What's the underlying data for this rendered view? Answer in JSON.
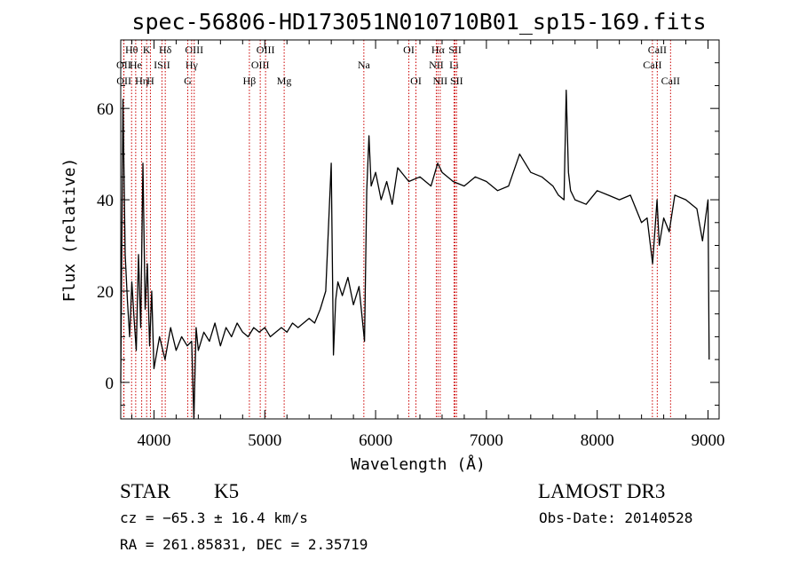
{
  "title": "spec-56806-HD173051N010710B01_sp15-169.fits",
  "chart_data": {
    "type": "line",
    "xlabel": "Wavelength (Å)",
    "ylabel": "Flux (relative)",
    "xlim": [
      3700,
      9100
    ],
    "ylim": [
      -8,
      75
    ],
    "xticks": [
      4000,
      5000,
      6000,
      7000,
      8000,
      9000
    ],
    "yticks": [
      0,
      20,
      40,
      60
    ],
    "series": [
      {
        "x": [
          3700,
          3720,
          3740,
          3760,
          3780,
          3800,
          3820,
          3840,
          3860,
          3880,
          3900,
          3920,
          3940,
          3960,
          3980,
          4000,
          4050,
          4100,
          4150,
          4200,
          4250,
          4300,
          4340,
          4360,
          4380,
          4400,
          4450,
          4500,
          4550,
          4600,
          4650,
          4700,
          4750,
          4800,
          4850,
          4900,
          4950,
          5000,
          5050,
          5100,
          5150,
          5200,
          5250,
          5300,
          5350,
          5400,
          5450,
          5500,
          5550,
          5600,
          5620,
          5640,
          5660,
          5700,
          5750,
          5800,
          5850,
          5900,
          5920,
          5940,
          5960,
          6000,
          6050,
          6100,
          6150,
          6200,
          6300,
          6400,
          6500,
          6560,
          6600,
          6700,
          6800,
          6900,
          7000,
          7100,
          7200,
          7300,
          7400,
          7500,
          7600,
          7650,
          7700,
          7720,
          7740,
          7760,
          7800,
          7900,
          8000,
          8100,
          8200,
          8300,
          8400,
          8450,
          8500,
          8540,
          8560,
          8600,
          8650,
          8700,
          8800,
          8900,
          8950,
          9000,
          9010
        ],
        "y": [
          0,
          62,
          28,
          18,
          10,
          22,
          14,
          7,
          28,
          12,
          48,
          16,
          26,
          8,
          20,
          3,
          10,
          5,
          12,
          7,
          10,
          8,
          9,
          -8,
          12,
          7,
          11,
          9,
          13,
          8,
          12,
          10,
          13,
          11,
          10,
          12,
          11,
          12,
          10,
          11,
          12,
          11,
          13,
          12,
          13,
          14,
          13,
          16,
          20,
          48,
          6,
          18,
          22,
          19,
          23,
          17,
          21,
          9,
          42,
          54,
          43,
          46,
          40,
          44,
          39,
          47,
          44,
          45,
          43,
          48,
          46,
          44,
          43,
          45,
          44,
          42,
          43,
          50,
          46,
          45,
          43,
          41,
          40,
          64,
          46,
          42,
          40,
          39,
          42,
          41,
          40,
          41,
          35,
          36,
          26,
          40,
          30,
          36,
          33,
          41,
          40,
          38,
          31,
          40,
          5
        ]
      }
    ],
    "line_markers": [
      {
        "label": "OII",
        "x": 3727,
        "row": 1,
        "color": "#cc0000"
      },
      {
        "label": "OII",
        "x": 3729,
        "row": 2,
        "color": "#cc0000"
      },
      {
        "label": "Hθ",
        "x": 3798,
        "row": 0,
        "color": "#cc0000"
      },
      {
        "label": "He",
        "x": 3835,
        "row": 1,
        "color": "#cc0000"
      },
      {
        "label": "Hη",
        "x": 3889,
        "row": 2,
        "color": "#cc0000"
      },
      {
        "label": "K",
        "x": 3934,
        "row": 0,
        "color": "#cc0000"
      },
      {
        "label": "H",
        "x": 3968,
        "row": 2,
        "color": "#cc0000"
      },
      {
        "label": "ISII",
        "x": 4072,
        "row": 1,
        "color": "#cc0000"
      },
      {
        "label": "Hδ",
        "x": 4102,
        "row": 0,
        "color": "#cc0000"
      },
      {
        "label": "OIII",
        "x": 4363,
        "row": 0,
        "color": "#cc0000"
      },
      {
        "label": "Hγ",
        "x": 4340,
        "row": 1,
        "color": "#cc0000"
      },
      {
        "label": "G",
        "x": 4305,
        "row": 2,
        "color": "#cc0000"
      },
      {
        "label": "Hβ",
        "x": 4861,
        "row": 2,
        "color": "#cc0000"
      },
      {
        "label": "OIII",
        "x": 5007,
        "row": 0,
        "color": "#cc0000"
      },
      {
        "label": "OIII",
        "x": 4959,
        "row": 1,
        "color": "#cc0000"
      },
      {
        "label": "Mg",
        "x": 5175,
        "row": 2,
        "color": "#cc0000"
      },
      {
        "label": "Na",
        "x": 5894,
        "row": 1,
        "color": "#cc0000"
      },
      {
        "label": "OI",
        "x": 6300,
        "row": 0,
        "color": "#cc0000"
      },
      {
        "label": "OI",
        "x": 6364,
        "row": 2,
        "color": "#cc0000"
      },
      {
        "label": "Hα",
        "x": 6563,
        "row": 0,
        "color": "#cc0000"
      },
      {
        "label": "NII",
        "x": 6548,
        "row": 1,
        "color": "#cc0000"
      },
      {
        "label": "NII",
        "x": 6583,
        "row": 2,
        "color": "#cc0000"
      },
      {
        "label": "SII",
        "x": 6717,
        "row": 0,
        "color": "#cc0000"
      },
      {
        "label": "Li",
        "x": 6708,
        "row": 1,
        "color": "#cc0000"
      },
      {
        "label": "SII",
        "x": 6731,
        "row": 2,
        "color": "#cc0000"
      },
      {
        "label": "CaII",
        "x": 8542,
        "row": 0,
        "color": "#cc0000"
      },
      {
        "label": "CaII",
        "x": 8498,
        "row": 1,
        "color": "#cc0000"
      },
      {
        "label": "CaII",
        "x": 8662,
        "row": 2,
        "color": "#cc0000"
      }
    ],
    "grid": false,
    "line_color": "#000000"
  },
  "info": {
    "class": "STAR",
    "subclass": "K5",
    "survey": "LAMOST DR3",
    "cz": "cz = −65.3 ± 16.4 km/s",
    "obs_date": "Obs-Date: 20140528",
    "coords": "RA = 261.85831, DEC =    2.35719"
  }
}
